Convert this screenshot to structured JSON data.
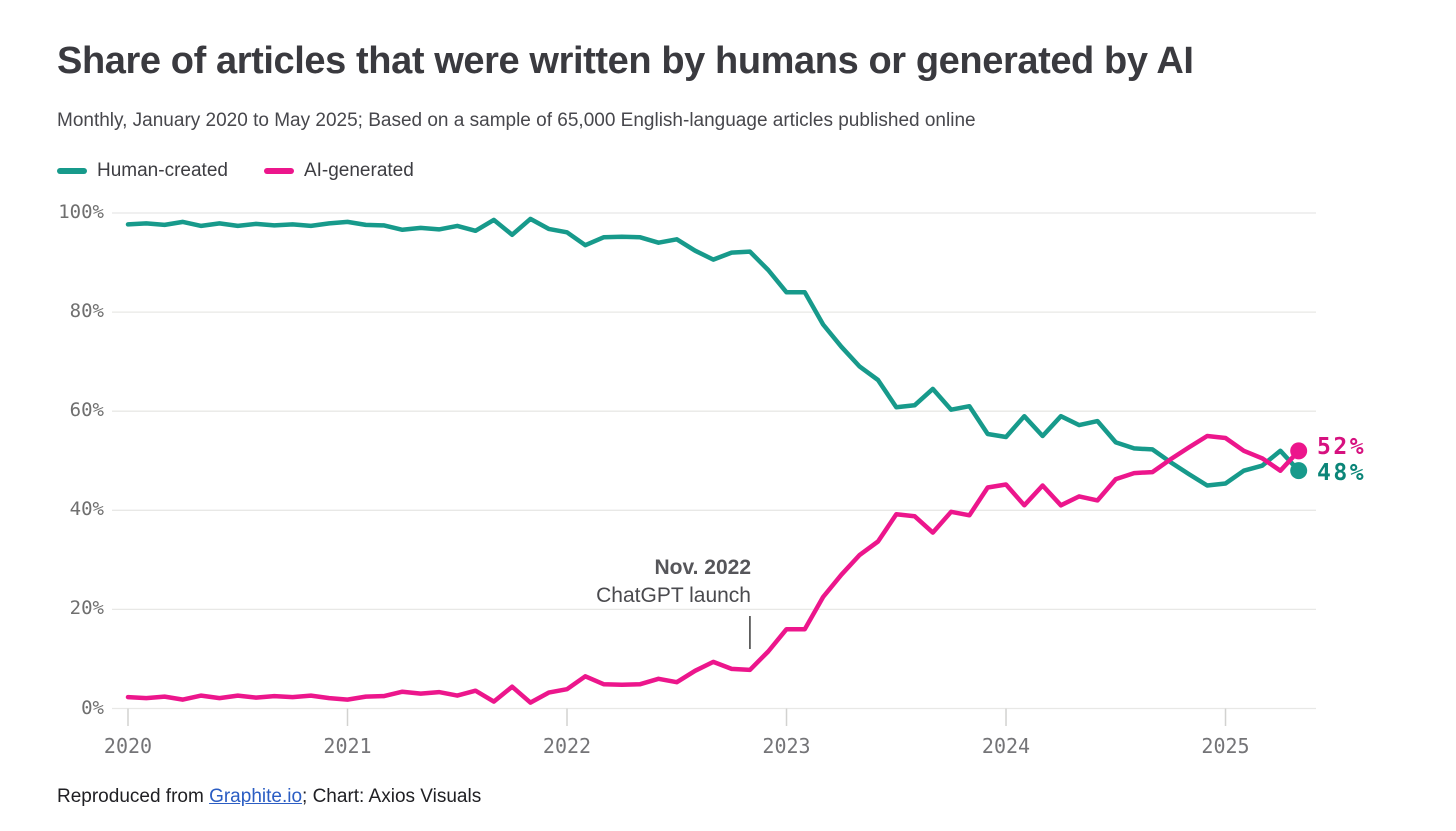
{
  "chart_data": {
    "type": "line",
    "title": "Share of articles that were written by humans or generated by AI",
    "subtitle": "Monthly, January 2020 to May 2025; Based on a sample of 65,000 English-language articles published online",
    "x_unit": "month",
    "x_start": "2020-01",
    "x_end": "2025-05",
    "ylim": [
      0,
      100
    ],
    "grid": "horizontal",
    "legend_position": "top-left",
    "y_ticks": [
      {
        "value": 0,
        "label": "0%"
      },
      {
        "value": 20,
        "label": "20%"
      },
      {
        "value": 40,
        "label": "40%"
      },
      {
        "value": 60,
        "label": "60%"
      },
      {
        "value": 80,
        "label": "80%"
      },
      {
        "value": 100,
        "label": "100%"
      }
    ],
    "x_ticks": [
      {
        "month_index": 0,
        "label": "2020"
      },
      {
        "month_index": 12,
        "label": "2021"
      },
      {
        "month_index": 24,
        "label": "2022"
      },
      {
        "month_index": 36,
        "label": "2023"
      },
      {
        "month_index": 48,
        "label": "2024"
      },
      {
        "month_index": 60,
        "label": "2025"
      }
    ],
    "x_months": [
      "2020-01",
      "2020-02",
      "2020-03",
      "2020-04",
      "2020-05",
      "2020-06",
      "2020-07",
      "2020-08",
      "2020-09",
      "2020-10",
      "2020-11",
      "2020-12",
      "2021-01",
      "2021-02",
      "2021-03",
      "2021-04",
      "2021-05",
      "2021-06",
      "2021-07",
      "2021-08",
      "2021-09",
      "2021-10",
      "2021-11",
      "2021-12",
      "2022-01",
      "2022-02",
      "2022-03",
      "2022-04",
      "2022-05",
      "2022-06",
      "2022-07",
      "2022-08",
      "2022-09",
      "2022-10",
      "2022-11",
      "2022-12",
      "2023-01",
      "2023-02",
      "2023-03",
      "2023-04",
      "2023-05",
      "2023-06",
      "2023-07",
      "2023-08",
      "2023-09",
      "2023-10",
      "2023-11",
      "2023-12",
      "2024-01",
      "2024-02",
      "2024-03",
      "2024-04",
      "2024-05",
      "2024-06",
      "2024-07",
      "2024-08",
      "2024-09",
      "2024-10",
      "2024-11",
      "2024-12",
      "2025-01",
      "2025-02",
      "2025-03",
      "2025-04",
      "2025-05"
    ],
    "series": [
      {
        "name": "Human-created",
        "color": "#179a8b",
        "label_color": "#0b8578",
        "end_label": "48%",
        "values": [
          97.7,
          97.9,
          97.6,
          98.2,
          97.4,
          97.9,
          97.4,
          97.8,
          97.5,
          97.7,
          97.4,
          97.9,
          98.2,
          97.6,
          97.5,
          96.6,
          97.0,
          96.7,
          97.4,
          96.4,
          98.6,
          95.6,
          98.8,
          96.8,
          96.1,
          93.5,
          95.1,
          95.2,
          95.1,
          94.0,
          94.7,
          92.4,
          90.6,
          92.0,
          92.2,
          88.5,
          84.0,
          84.0,
          77.5,
          73.0,
          69.0,
          66.3,
          60.8,
          61.2,
          64.5,
          60.3,
          61.0,
          55.4,
          54.8,
          59.0,
          55.0,
          59.0,
          57.2,
          58.0,
          53.7,
          52.5,
          52.3,
          49.7,
          47.3,
          45.0,
          45.4,
          48.0,
          49.0,
          52.0,
          48.0
        ]
      },
      {
        "name": "AI-generated",
        "color": "#ec168c",
        "label_color": "#d6117f",
        "end_label": "52%",
        "values": [
          2.3,
          2.1,
          2.4,
          1.8,
          2.6,
          2.1,
          2.6,
          2.2,
          2.5,
          2.3,
          2.6,
          2.1,
          1.8,
          2.4,
          2.5,
          3.4,
          3.0,
          3.3,
          2.6,
          3.6,
          1.4,
          4.4,
          1.2,
          3.2,
          3.9,
          6.5,
          4.9,
          4.8,
          4.9,
          6.0,
          5.3,
          7.6,
          9.4,
          8.0,
          7.8,
          11.5,
          16.0,
          16.0,
          22.5,
          27.0,
          31.0,
          33.7,
          39.2,
          38.8,
          35.5,
          39.7,
          39.0,
          44.6,
          45.2,
          41.0,
          45.0,
          41.0,
          42.8,
          42.0,
          46.3,
          47.5,
          47.7,
          50.3,
          52.7,
          55.0,
          54.6,
          52.0,
          50.5,
          48.0,
          52.0
        ]
      }
    ],
    "annotation": {
      "line1": "Nov. 2022",
      "line2": "ChatGPT launch",
      "month_index": 34
    }
  },
  "footer": {
    "prefix": "Reproduced from ",
    "link_text": "Graphite.io",
    "suffix": "; Chart: Axios Visuals",
    "link_color": "#2b5dc3"
  }
}
